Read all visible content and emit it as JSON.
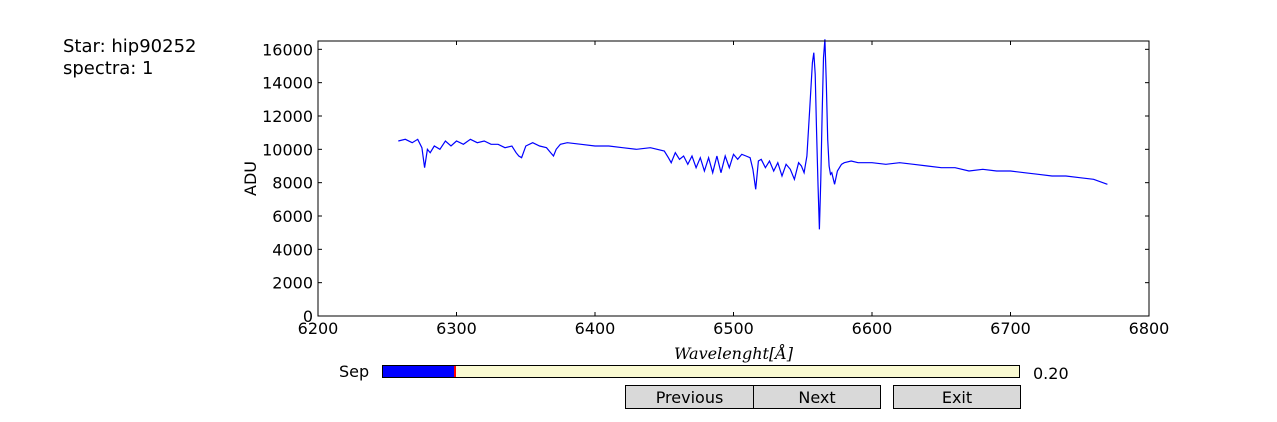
{
  "info": {
    "star": "Star: hip90252",
    "spectra": "spectra: 1"
  },
  "controls": {
    "slider_label": "Sep",
    "slider_value_text": "0.20",
    "slider_value": 0.2,
    "slider_min": 0,
    "slider_max": 1,
    "previous_label": "Previous",
    "next_label": "Next",
    "exit_label": "Exit"
  },
  "colors": {
    "line": "#0000ff",
    "slider_fill": "#0000ff",
    "slider_track": "#fafad2",
    "slider_handle": "#ff0000",
    "button": "#d9d9d9"
  },
  "chart_data": {
    "type": "line",
    "title": "",
    "xlabel": "Wavelenght[Å]",
    "ylabel": "ADU",
    "xlim": [
      6200,
      6800
    ],
    "ylim": [
      0,
      16500
    ],
    "xticks": [
      6200,
      6300,
      6400,
      6500,
      6600,
      6700,
      6800
    ],
    "yticks": [
      0,
      2000,
      4000,
      6000,
      8000,
      10000,
      12000,
      14000,
      16000
    ],
    "grid": false,
    "series": [
      {
        "x": [
          6258,
          6263,
          6268,
          6272,
          6275,
          6277,
          6279,
          6281,
          6284,
          6288,
          6292,
          6296,
          6300,
          6305,
          6310,
          6315,
          6320,
          6325,
          6330,
          6335,
          6340,
          6343,
          6345,
          6347,
          6350,
          6355,
          6360,
          6365,
          6368,
          6370,
          6372,
          6375,
          6380,
          6390,
          6400,
          6410,
          6420,
          6430,
          6440,
          6450,
          6453,
          6455,
          6458,
          6461,
          6464,
          6467,
          6470,
          6473,
          6476,
          6479,
          6482,
          6485,
          6488,
          6491,
          6494,
          6497,
          6500,
          6503,
          6506,
          6509,
          6512,
          6514,
          6516,
          6518,
          6520,
          6523,
          6526,
          6529,
          6532,
          6535,
          6538,
          6541,
          6544,
          6547,
          6549,
          6551,
          6553,
          6555,
          6557,
          6558,
          6559,
          6560,
          6561,
          6562,
          6563,
          6564,
          6565,
          6566,
          6567,
          6568,
          6569,
          6570,
          6571,
          6573,
          6575,
          6578,
          6580,
          6585,
          6590,
          6600,
          6610,
          6620,
          6630,
          6640,
          6650,
          6660,
          6670,
          6680,
          6690,
          6700,
          6710,
          6720,
          6730,
          6740,
          6750,
          6760,
          6770
        ],
        "y": [
          10500,
          10600,
          10400,
          10600,
          10100,
          8900,
          10000,
          9800,
          10200,
          10000,
          10500,
          10200,
          10500,
          10300,
          10600,
          10400,
          10500,
          10300,
          10300,
          10100,
          10200,
          9800,
          9600,
          9500,
          10200,
          10400,
          10200,
          10100,
          9800,
          9600,
          10000,
          10300,
          10400,
          10300,
          10200,
          10200,
          10100,
          10000,
          10100,
          9900,
          9500,
          9200,
          9800,
          9400,
          9600,
          9100,
          9600,
          8900,
          9500,
          8700,
          9500,
          8600,
          9600,
          8600,
          9600,
          8900,
          9700,
          9400,
          9700,
          9600,
          9500,
          8800,
          7600,
          9300,
          9400,
          8900,
          9300,
          8700,
          9200,
          8400,
          9100,
          8800,
          8200,
          9200,
          9000,
          8600,
          9600,
          12400,
          15200,
          15800,
          14500,
          11000,
          7900,
          5200,
          8200,
          12000,
          15500,
          16600,
          14000,
          10600,
          9000,
          8500,
          8600,
          7900,
          8700,
          9100,
          9200,
          9300,
          9200,
          9200,
          9100,
          9200,
          9100,
          9000,
          8900,
          8900,
          8700,
          8800,
          8700,
          8700,
          8600,
          8500,
          8400,
          8400,
          8300,
          8200,
          7900
        ]
      }
    ]
  }
}
